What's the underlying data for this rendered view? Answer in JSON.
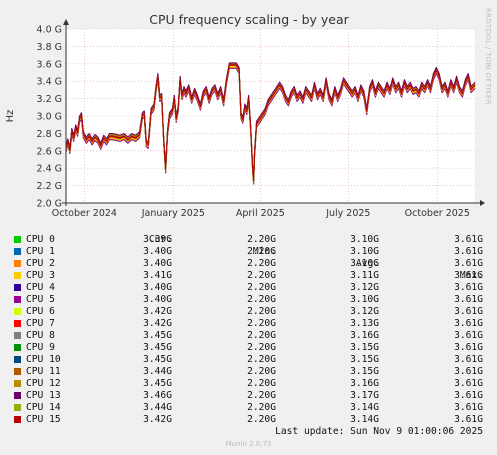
{
  "chart_data": {
    "type": "line",
    "title": "CPU frequency scaling - by year",
    "ylabel": "Hz",
    "ylim": [
      2.0,
      4.0
    ],
    "y_ticks": [
      "2.0 G",
      "2.2 G",
      "2.4 G",
      "2.6 G",
      "2.8 G",
      "3.0 G",
      "3.2 G",
      "3.4 G",
      "3.6 G",
      "3.8 G",
      "4.0 G"
    ],
    "x_range": [
      "2024-09-12",
      "2025-11-09"
    ],
    "x_ticks": [
      {
        "date": "2024-10-01",
        "label": "October 2024"
      },
      {
        "date": "2025-01-01",
        "label": "January 2025"
      },
      {
        "date": "2025-04-01",
        "label": "April 2025"
      },
      {
        "date": "2025-07-01",
        "label": "July 2025"
      },
      {
        "date": "2025-10-01",
        "label": "October 2025"
      }
    ],
    "grid": true,
    "profile": [
      [
        "2024-09-12",
        2.62
      ],
      [
        "2024-09-14",
        2.7
      ],
      [
        "2024-09-16",
        2.6
      ],
      [
        "2024-09-18",
        2.82
      ],
      [
        "2024-09-20",
        2.74
      ],
      [
        "2024-09-22",
        2.86
      ],
      [
        "2024-09-24",
        2.8
      ],
      [
        "2024-09-26",
        2.96
      ],
      [
        "2024-09-28",
        3.0
      ],
      [
        "2024-09-30",
        2.78
      ],
      [
        "2024-10-03",
        2.72
      ],
      [
        "2024-10-06",
        2.76
      ],
      [
        "2024-10-09",
        2.7
      ],
      [
        "2024-10-12",
        2.75
      ],
      [
        "2024-10-15",
        2.72
      ],
      [
        "2024-10-18",
        2.65
      ],
      [
        "2024-10-21",
        2.74
      ],
      [
        "2024-10-24",
        2.7
      ],
      [
        "2024-10-27",
        2.76
      ],
      [
        "2024-10-30",
        2.76
      ],
      [
        "2024-11-03",
        2.75
      ],
      [
        "2024-11-07",
        2.74
      ],
      [
        "2024-11-11",
        2.76
      ],
      [
        "2024-11-15",
        2.72
      ],
      [
        "2024-11-19",
        2.76
      ],
      [
        "2024-11-23",
        2.74
      ],
      [
        "2024-11-27",
        2.78
      ],
      [
        "2024-11-30",
        3.0
      ],
      [
        "2024-12-02",
        3.02
      ],
      [
        "2024-12-04",
        2.68
      ],
      [
        "2024-12-06",
        2.66
      ],
      [
        "2024-12-09",
        3.05
      ],
      [
        "2024-12-12",
        3.1
      ],
      [
        "2024-12-14",
        3.3
      ],
      [
        "2024-12-16",
        3.45
      ],
      [
        "2024-12-18",
        3.2
      ],
      [
        "2024-12-20",
        3.22
      ],
      [
        "2024-12-22",
        2.72
      ],
      [
        "2024-12-24",
        2.38
      ],
      [
        "2024-12-26",
        2.8
      ],
      [
        "2024-12-28",
        3.0
      ],
      [
        "2024-12-31",
        3.05
      ],
      [
        "2025-01-02",
        3.2
      ],
      [
        "2025-01-04",
        2.96
      ],
      [
        "2025-01-06",
        3.08
      ],
      [
        "2025-01-08",
        3.42
      ],
      [
        "2025-01-10",
        3.22
      ],
      [
        "2025-01-12",
        3.3
      ],
      [
        "2025-01-14",
        3.25
      ],
      [
        "2025-01-17",
        3.32
      ],
      [
        "2025-01-20",
        3.18
      ],
      [
        "2025-01-23",
        3.28
      ],
      [
        "2025-01-26",
        3.2
      ],
      [
        "2025-01-29",
        3.1
      ],
      [
        "2025-02-01",
        3.25
      ],
      [
        "2025-02-04",
        3.3
      ],
      [
        "2025-02-07",
        3.18
      ],
      [
        "2025-02-10",
        3.28
      ],
      [
        "2025-02-13",
        3.32
      ],
      [
        "2025-02-16",
        3.22
      ],
      [
        "2025-02-19",
        3.3
      ],
      [
        "2025-02-22",
        3.15
      ],
      [
        "2025-02-25",
        3.4
      ],
      [
        "2025-02-28",
        3.58
      ],
      [
        "2025-03-03",
        3.58
      ],
      [
        "2025-03-07",
        3.58
      ],
      [
        "2025-03-10",
        3.52
      ],
      [
        "2025-03-12",
        3.0
      ],
      [
        "2025-03-14",
        2.95
      ],
      [
        "2025-03-16",
        3.1
      ],
      [
        "2025-03-18",
        3.05
      ],
      [
        "2025-03-20",
        3.2
      ],
      [
        "2025-03-22",
        2.85
      ],
      [
        "2025-03-24",
        2.4
      ],
      [
        "2025-03-25",
        2.25
      ],
      [
        "2025-03-26",
        2.55
      ],
      [
        "2025-03-28",
        2.9
      ],
      [
        "2025-03-31",
        2.95
      ],
      [
        "2025-04-03",
        3.0
      ],
      [
        "2025-04-06",
        3.05
      ],
      [
        "2025-04-09",
        3.15
      ],
      [
        "2025-04-12",
        3.2
      ],
      [
        "2025-04-15",
        3.25
      ],
      [
        "2025-04-18",
        3.3
      ],
      [
        "2025-04-21",
        3.35
      ],
      [
        "2025-04-24",
        3.3
      ],
      [
        "2025-04-27",
        3.2
      ],
      [
        "2025-04-30",
        3.15
      ],
      [
        "2025-05-03",
        3.25
      ],
      [
        "2025-05-06",
        3.3
      ],
      [
        "2025-05-09",
        3.2
      ],
      [
        "2025-05-12",
        3.25
      ],
      [
        "2025-05-15",
        3.18
      ],
      [
        "2025-05-18",
        3.3
      ],
      [
        "2025-05-21",
        3.25
      ],
      [
        "2025-05-24",
        3.2
      ],
      [
        "2025-05-27",
        3.35
      ],
      [
        "2025-05-30",
        3.22
      ],
      [
        "2025-06-02",
        3.28
      ],
      [
        "2025-06-05",
        3.2
      ],
      [
        "2025-06-08",
        3.4
      ],
      [
        "2025-06-11",
        3.22
      ],
      [
        "2025-06-14",
        3.15
      ],
      [
        "2025-06-17",
        3.3
      ],
      [
        "2025-06-20",
        3.2
      ],
      [
        "2025-06-23",
        3.28
      ],
      [
        "2025-06-26",
        3.4
      ],
      [
        "2025-06-29",
        3.35
      ],
      [
        "2025-07-02",
        3.3
      ],
      [
        "2025-07-05",
        3.25
      ],
      [
        "2025-07-08",
        3.3
      ],
      [
        "2025-07-11",
        3.2
      ],
      [
        "2025-07-14",
        3.32
      ],
      [
        "2025-07-17",
        3.25
      ],
      [
        "2025-07-20",
        3.05
      ],
      [
        "2025-07-23",
        3.3
      ],
      [
        "2025-07-26",
        3.38
      ],
      [
        "2025-07-29",
        3.25
      ],
      [
        "2025-08-01",
        3.35
      ],
      [
        "2025-08-04",
        3.3
      ],
      [
        "2025-08-07",
        3.25
      ],
      [
        "2025-08-10",
        3.35
      ],
      [
        "2025-08-13",
        3.28
      ],
      [
        "2025-08-16",
        3.4
      ],
      [
        "2025-08-19",
        3.3
      ],
      [
        "2025-08-22",
        3.35
      ],
      [
        "2025-08-25",
        3.25
      ],
      [
        "2025-08-28",
        3.38
      ],
      [
        "2025-08-31",
        3.3
      ],
      [
        "2025-09-03",
        3.35
      ],
      [
        "2025-09-06",
        3.28
      ],
      [
        "2025-09-09",
        3.3
      ],
      [
        "2025-09-12",
        3.25
      ],
      [
        "2025-09-15",
        3.35
      ],
      [
        "2025-09-18",
        3.3
      ],
      [
        "2025-09-21",
        3.38
      ],
      [
        "2025-09-24",
        3.3
      ],
      [
        "2025-09-27",
        3.45
      ],
      [
        "2025-09-30",
        3.52
      ],
      [
        "2025-10-03",
        3.45
      ],
      [
        "2025-10-06",
        3.3
      ],
      [
        "2025-10-09",
        3.35
      ],
      [
        "2025-10-12",
        3.25
      ],
      [
        "2025-10-15",
        3.38
      ],
      [
        "2025-10-18",
        3.3
      ],
      [
        "2025-10-21",
        3.42
      ],
      [
        "2025-10-24",
        3.3
      ],
      [
        "2025-10-27",
        3.25
      ],
      [
        "2025-10-30",
        3.38
      ],
      [
        "2025-11-02",
        3.45
      ],
      [
        "2025-11-05",
        3.3
      ],
      [
        "2025-11-09",
        3.35
      ]
    ],
    "series": [
      {
        "name": "CPU 0",
        "color": "#00cc00",
        "cur": "3.39G",
        "min": "2.20G",
        "avg": "3.10G",
        "max": "3.61G"
      },
      {
        "name": "CPU 1",
        "color": "#0066b3",
        "cur": "3.40G",
        "min": "2.20G",
        "avg": "3.10G",
        "max": "3.61G"
      },
      {
        "name": "CPU 2",
        "color": "#ff8000",
        "cur": "3.40G",
        "min": "2.20G",
        "avg": "3.10G",
        "max": "3.61G"
      },
      {
        "name": "CPU 3",
        "color": "#ffcc00",
        "cur": "3.41G",
        "min": "2.20G",
        "avg": "3.11G",
        "max": "3.61G"
      },
      {
        "name": "CPU 4",
        "color": "#330099",
        "cur": "3.40G",
        "min": "2.20G",
        "avg": "3.12G",
        "max": "3.61G"
      },
      {
        "name": "CPU 5",
        "color": "#990099",
        "cur": "3.40G",
        "min": "2.20G",
        "avg": "3.10G",
        "max": "3.61G"
      },
      {
        "name": "CPU 6",
        "color": "#ccff00",
        "cur": "3.42G",
        "min": "2.20G",
        "avg": "3.12G",
        "max": "3.61G"
      },
      {
        "name": "CPU 7",
        "color": "#ff0000",
        "cur": "3.42G",
        "min": "2.20G",
        "avg": "3.13G",
        "max": "3.61G"
      },
      {
        "name": "CPU 8",
        "color": "#808080",
        "cur": "3.45G",
        "min": "2.20G",
        "avg": "3.16G",
        "max": "3.61G"
      },
      {
        "name": "CPU 9",
        "color": "#008f00",
        "cur": "3.45G",
        "min": "2.20G",
        "avg": "3.15G",
        "max": "3.61G"
      },
      {
        "name": "CPU 10",
        "color": "#00487d",
        "cur": "3.45G",
        "min": "2.20G",
        "avg": "3.15G",
        "max": "3.61G"
      },
      {
        "name": "CPU 11",
        "color": "#b35a00",
        "cur": "3.44G",
        "min": "2.20G",
        "avg": "3.15G",
        "max": "3.61G"
      },
      {
        "name": "CPU 12",
        "color": "#b38f00",
        "cur": "3.45G",
        "min": "2.20G",
        "avg": "3.16G",
        "max": "3.61G"
      },
      {
        "name": "CPU 13",
        "color": "#6b006b",
        "cur": "3.46G",
        "min": "2.20G",
        "avg": "3.17G",
        "max": "3.61G"
      },
      {
        "name": "CPU 14",
        "color": "#8fb300",
        "cur": "3.44G",
        "min": "2.20G",
        "avg": "3.14G",
        "max": "3.61G"
      },
      {
        "name": "CPU 15",
        "color": "#b30000",
        "cur": "3.42G",
        "min": "2.20G",
        "avg": "3.14G",
        "max": "3.61G"
      }
    ]
  },
  "legend_headers": {
    "cur": "Cur:",
    "min": "Min:",
    "avg": "Avg:",
    "max": "Max:"
  },
  "footer": {
    "last_update": "Last update: Sun Nov  9 01:00:06 2025",
    "generator": "Munin 2.0.73",
    "side_credit": "RRDTOOL / TOBI OETIKER"
  }
}
